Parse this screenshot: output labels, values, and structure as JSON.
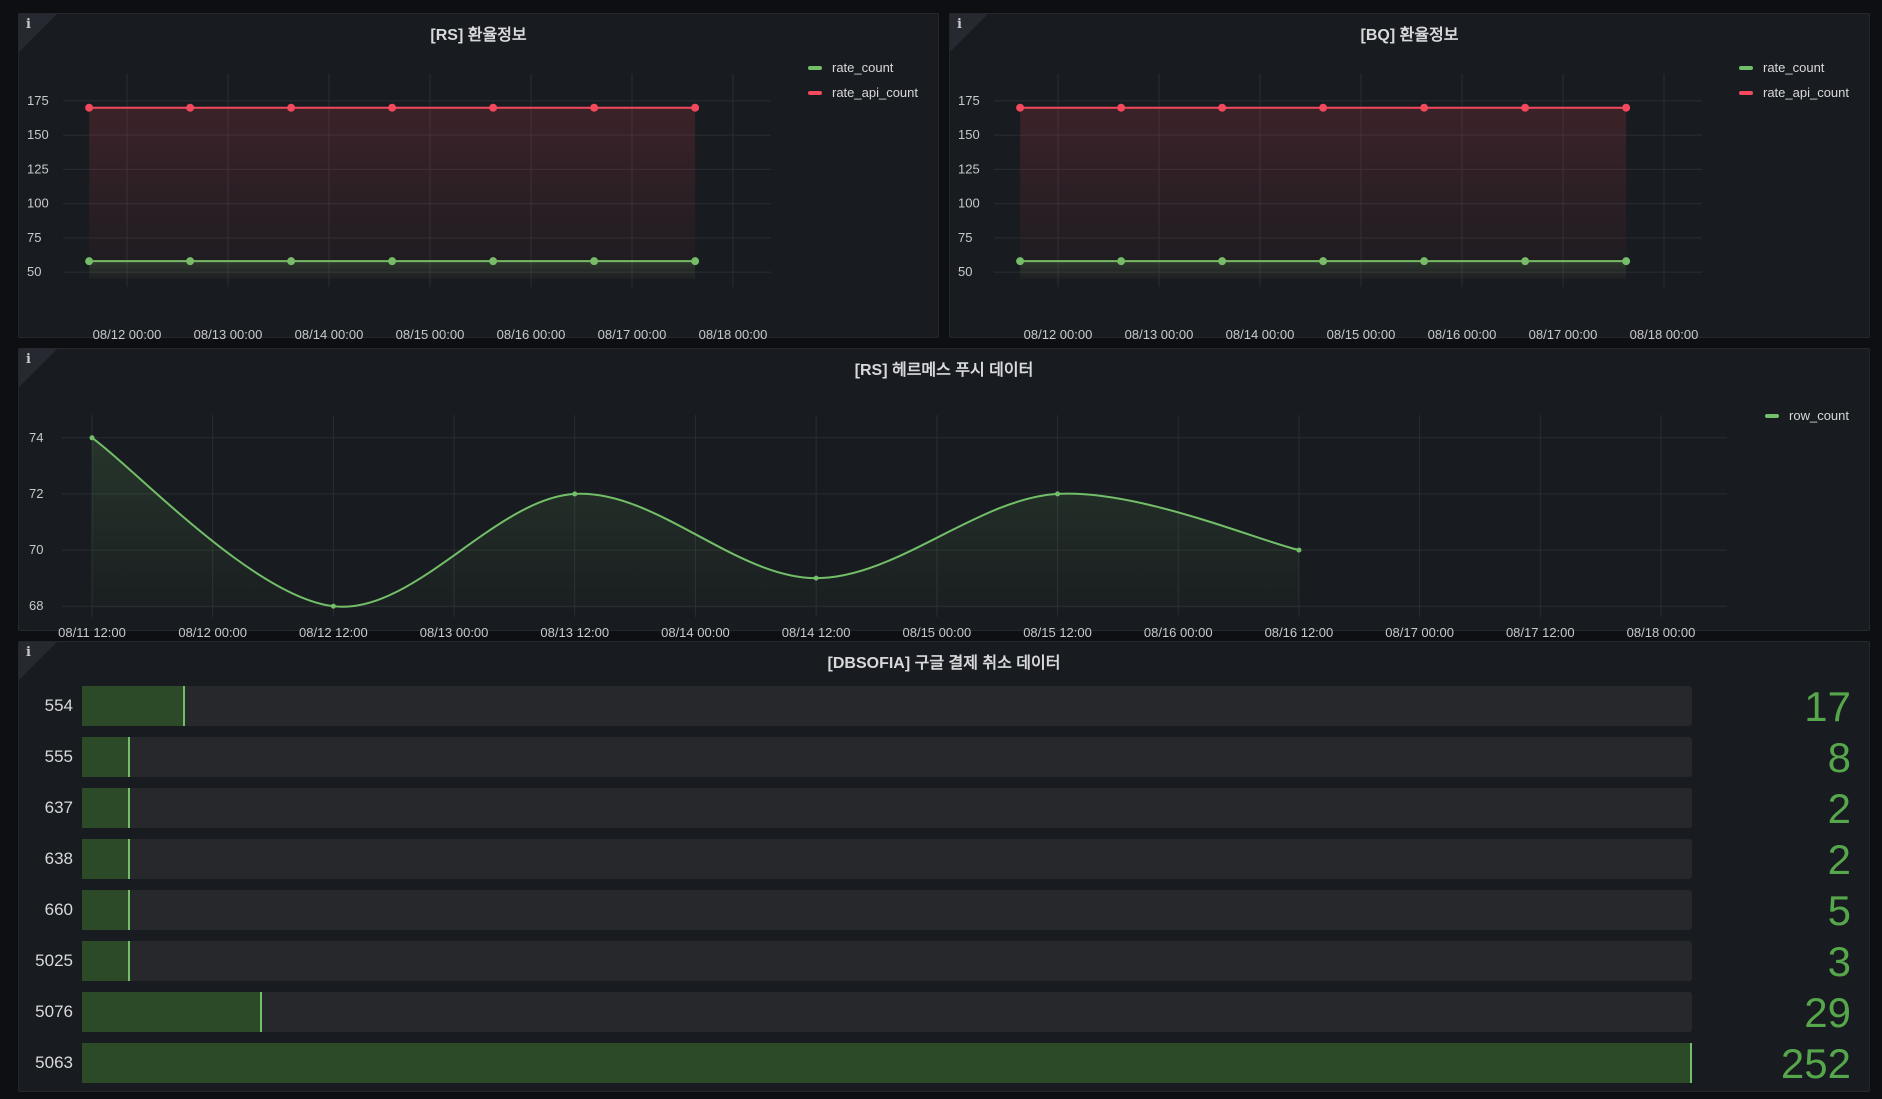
{
  "colors": {
    "green": "#73bf69",
    "red": "#f2495c",
    "value_text": "#56a64b"
  },
  "panels": {
    "rs_rate": {
      "title": "[RS] 환율정보",
      "info_icon": "i",
      "legend": [
        {
          "name": "rate_count",
          "color": "#73bf69"
        },
        {
          "name": "rate_api_count",
          "color": "#f2495c"
        }
      ]
    },
    "bq_rate": {
      "title": "[BQ] 환율정보",
      "info_icon": "i",
      "legend": [
        {
          "name": "rate_count",
          "color": "#73bf69"
        },
        {
          "name": "rate_api_count",
          "color": "#f2495c"
        }
      ]
    },
    "rs_hermes": {
      "title": "[RS] 헤르메스 푸시 데이터",
      "info_icon": "i",
      "legend": [
        {
          "name": "row_count",
          "color": "#73bf69"
        }
      ]
    },
    "dbsofia": {
      "title": "[DBSOFIA] 구글 결제 취소 데이터",
      "info_icon": "i",
      "max": 252,
      "rows": [
        {
          "label": "554",
          "value": "17"
        },
        {
          "label": "555",
          "value": "8"
        },
        {
          "label": "637",
          "value": "2"
        },
        {
          "label": "638",
          "value": "2"
        },
        {
          "label": "660",
          "value": "5"
        },
        {
          "label": "5025",
          "value": "3"
        },
        {
          "label": "5076",
          "value": "29"
        },
        {
          "label": "5063",
          "value": "252"
        }
      ]
    }
  },
  "chart_data": [
    {
      "type": "line",
      "title": "[RS] 환율정보",
      "x": [
        "08/11 15:00",
        "08/12 15:00",
        "08/13 15:00",
        "08/14 15:00",
        "08/15 15:00",
        "08/16 15:00",
        "08/17 15:00"
      ],
      "series": [
        {
          "name": "rate_count",
          "color": "#73bf69",
          "values": [
            58,
            58,
            58,
            58,
            58,
            58,
            58
          ]
        },
        {
          "name": "rate_api_count",
          "color": "#f2495c",
          "values": [
            170,
            170,
            170,
            170,
            170,
            170,
            170
          ]
        }
      ],
      "x_ticks": [
        "08/12 00:00",
        "08/13 00:00",
        "08/14 00:00",
        "08/15 00:00",
        "08/16 00:00",
        "08/17 00:00",
        "08/18 00:00"
      ],
      "y_ticks": [
        "175",
        "150",
        "125",
        "100",
        "75",
        "50"
      ],
      "ylim": [
        45,
        180
      ],
      "grid": true,
      "legend_position": "top-right"
    },
    {
      "type": "line",
      "title": "[BQ] 환율정보",
      "x": [
        "08/11 15:00",
        "08/12 15:00",
        "08/13 15:00",
        "08/14 15:00",
        "08/15 15:00",
        "08/16 15:00",
        "08/17 15:00"
      ],
      "series": [
        {
          "name": "rate_count",
          "color": "#73bf69",
          "values": [
            58,
            58,
            58,
            58,
            58,
            58,
            58
          ]
        },
        {
          "name": "rate_api_count",
          "color": "#f2495c",
          "values": [
            170,
            170,
            170,
            170,
            170,
            170,
            170
          ]
        }
      ],
      "x_ticks": [
        "08/12 00:00",
        "08/13 00:00",
        "08/14 00:00",
        "08/15 00:00",
        "08/16 00:00",
        "08/17 00:00",
        "08/18 00:00"
      ],
      "y_ticks": [
        "175",
        "150",
        "125",
        "100",
        "75",
        "50"
      ],
      "ylim": [
        45,
        180
      ],
      "grid": true,
      "legend_position": "top-right"
    },
    {
      "type": "line",
      "title": "[RS] 헤르메스 푸시 데이터",
      "x": [
        "08/11 12:00",
        "08/12 12:00",
        "08/13 12:00",
        "08/14 12:00",
        "08/15 12:00",
        "08/16 12:00"
      ],
      "series": [
        {
          "name": "row_count",
          "color": "#73bf69",
          "values": [
            74,
            68,
            72,
            69,
            72,
            70
          ]
        }
      ],
      "x_ticks": [
        "08/11 12:00",
        "08/12 00:00",
        "08/12 12:00",
        "08/13 00:00",
        "08/13 12:00",
        "08/14 00:00",
        "08/14 12:00",
        "08/15 00:00",
        "08/15 12:00",
        "08/16 00:00",
        "08/16 12:00",
        "08/17 00:00",
        "08/17 12:00",
        "08/18 00:00"
      ],
      "y_ticks": [
        "74",
        "72",
        "70",
        "68"
      ],
      "ylim": [
        67.9,
        74.1
      ],
      "grid": true,
      "smooth": true,
      "legend_position": "top-right"
    },
    {
      "type": "bar",
      "orientation": "horizontal",
      "title": "[DBSOFIA] 구글 결제 취소 데이터",
      "categories": [
        "554",
        "555",
        "637",
        "638",
        "660",
        "5025",
        "5076",
        "5063"
      ],
      "values": [
        17,
        8,
        2,
        2,
        5,
        3,
        29,
        252
      ]
    }
  ]
}
